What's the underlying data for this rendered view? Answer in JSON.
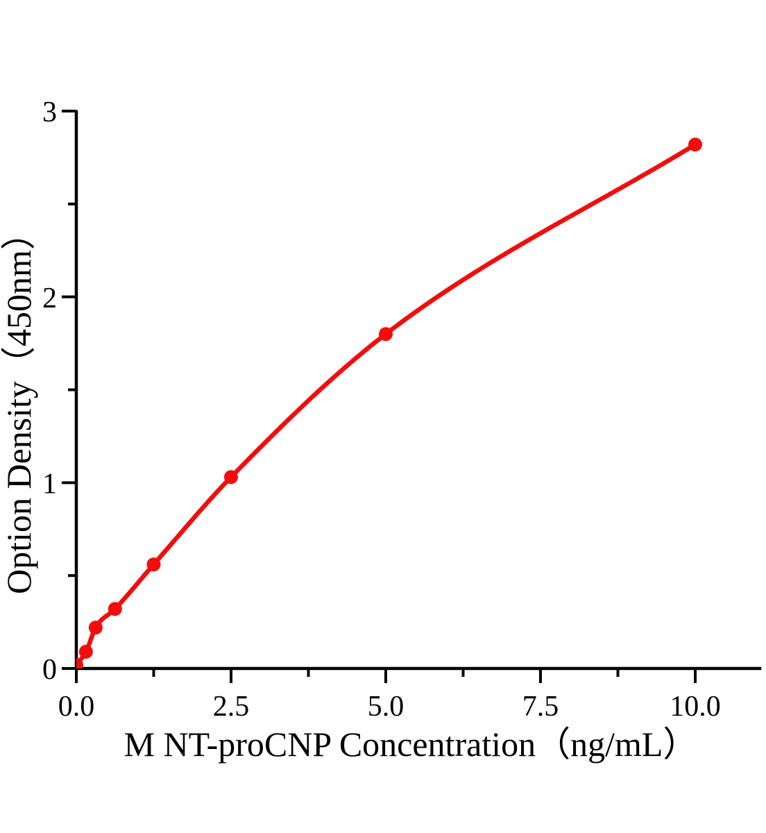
{
  "chart_data": {
    "type": "line",
    "title": "",
    "xlabel": "M NT-proCNP Concentration（ng/mL）",
    "ylabel": "Option Density（450nm）",
    "x": [
      0,
      0.156,
      0.3125,
      0.625,
      1.25,
      2.5,
      5,
      10
    ],
    "y": [
      0.02,
      0.09,
      0.22,
      0.32,
      0.56,
      1.03,
      1.8,
      2.82
    ],
    "xlim": [
      0,
      11.05
    ],
    "ylim": [
      0,
      3
    ],
    "x_major_ticks": [
      {
        "value": 0,
        "label": "0.0"
      },
      {
        "value": 2.5,
        "label": "2.5"
      },
      {
        "value": 5,
        "label": "5.0"
      },
      {
        "value": 7.5,
        "label": "7.5"
      },
      {
        "value": 10,
        "label": "10.0"
      }
    ],
    "x_minor_ticks": [
      1.25,
      3.75,
      6.25,
      8.75
    ],
    "y_major_ticks": [
      {
        "value": 0,
        "label": "0"
      },
      {
        "value": 1,
        "label": "1"
      },
      {
        "value": 2,
        "label": "2"
      },
      {
        "value": 3,
        "label": "3"
      }
    ],
    "y_minor_ticks": [
      0.5,
      1.5,
      2.5
    ],
    "grid": false,
    "legend": "none",
    "line_color": "#f20d0d",
    "marker_color": "#f20d0d",
    "axis_color": "#000000",
    "background_color": "#ffffff"
  }
}
